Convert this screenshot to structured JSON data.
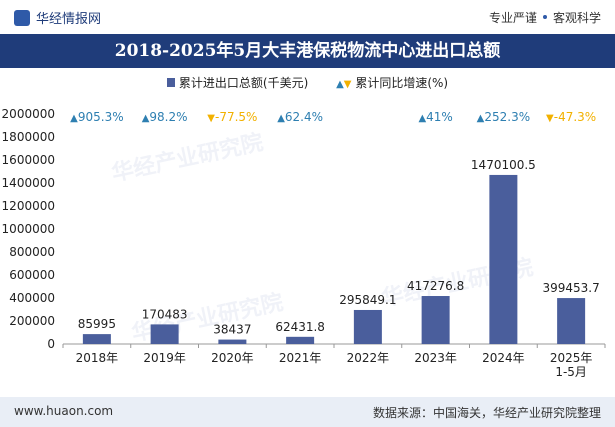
{
  "header": {
    "brand": "华经情报网",
    "slogan_left": "专业严谨",
    "slogan_right": "客观科学"
  },
  "title": "2018-2025年5月大丰港保税物流中心进出口总额",
  "legend": {
    "bar_label": "累计进出口总额(千美元)",
    "growth_label": "累计同比增速(%)"
  },
  "footer": {
    "url": "www.huaon.com",
    "source": "数据来源：中国海关，华经产业研究院整理"
  },
  "watermark": "华经产业研究院",
  "colors": {
    "bar": "#4a5e9c",
    "up": "#2e7fb1",
    "down": "#f2b100"
  },
  "chart_data": {
    "type": "bar",
    "categories": [
      "2018年",
      "2019年",
      "2020年",
      "2021年",
      "2022年",
      "2023年",
      "2024年",
      "2025年\n1-5月"
    ],
    "series": [
      {
        "name": "累计进出口总额(千美元)",
        "values": [
          85995,
          170483,
          38437,
          62431.8,
          295849.1,
          417276.8,
          1470100.5,
          399453.7
        ]
      }
    ],
    "value_labels": [
      "85995",
      "170483",
      "38437",
      "62431.8",
      "295849.1",
      "417276.8",
      "1470100.5",
      "399453.7"
    ],
    "growth": [
      {
        "label": "905.3%",
        "dir": "up"
      },
      {
        "label": "98.2%",
        "dir": "up"
      },
      {
        "label": "-77.5%",
        "dir": "down"
      },
      {
        "label": "62.4%",
        "dir": "up"
      },
      {
        "label": "",
        "dir": ""
      },
      {
        "label": "41%",
        "dir": "up"
      },
      {
        "label": "252.3%",
        "dir": "up"
      },
      {
        "label": "-47.3%",
        "dir": "down"
      }
    ],
    "ylim": [
      0,
      2000000
    ],
    "yticks": [
      0,
      200000,
      400000,
      600000,
      800000,
      1000000,
      1200000,
      1400000,
      1600000,
      1800000,
      2000000
    ],
    "xlabel": "",
    "ylabel": ""
  }
}
